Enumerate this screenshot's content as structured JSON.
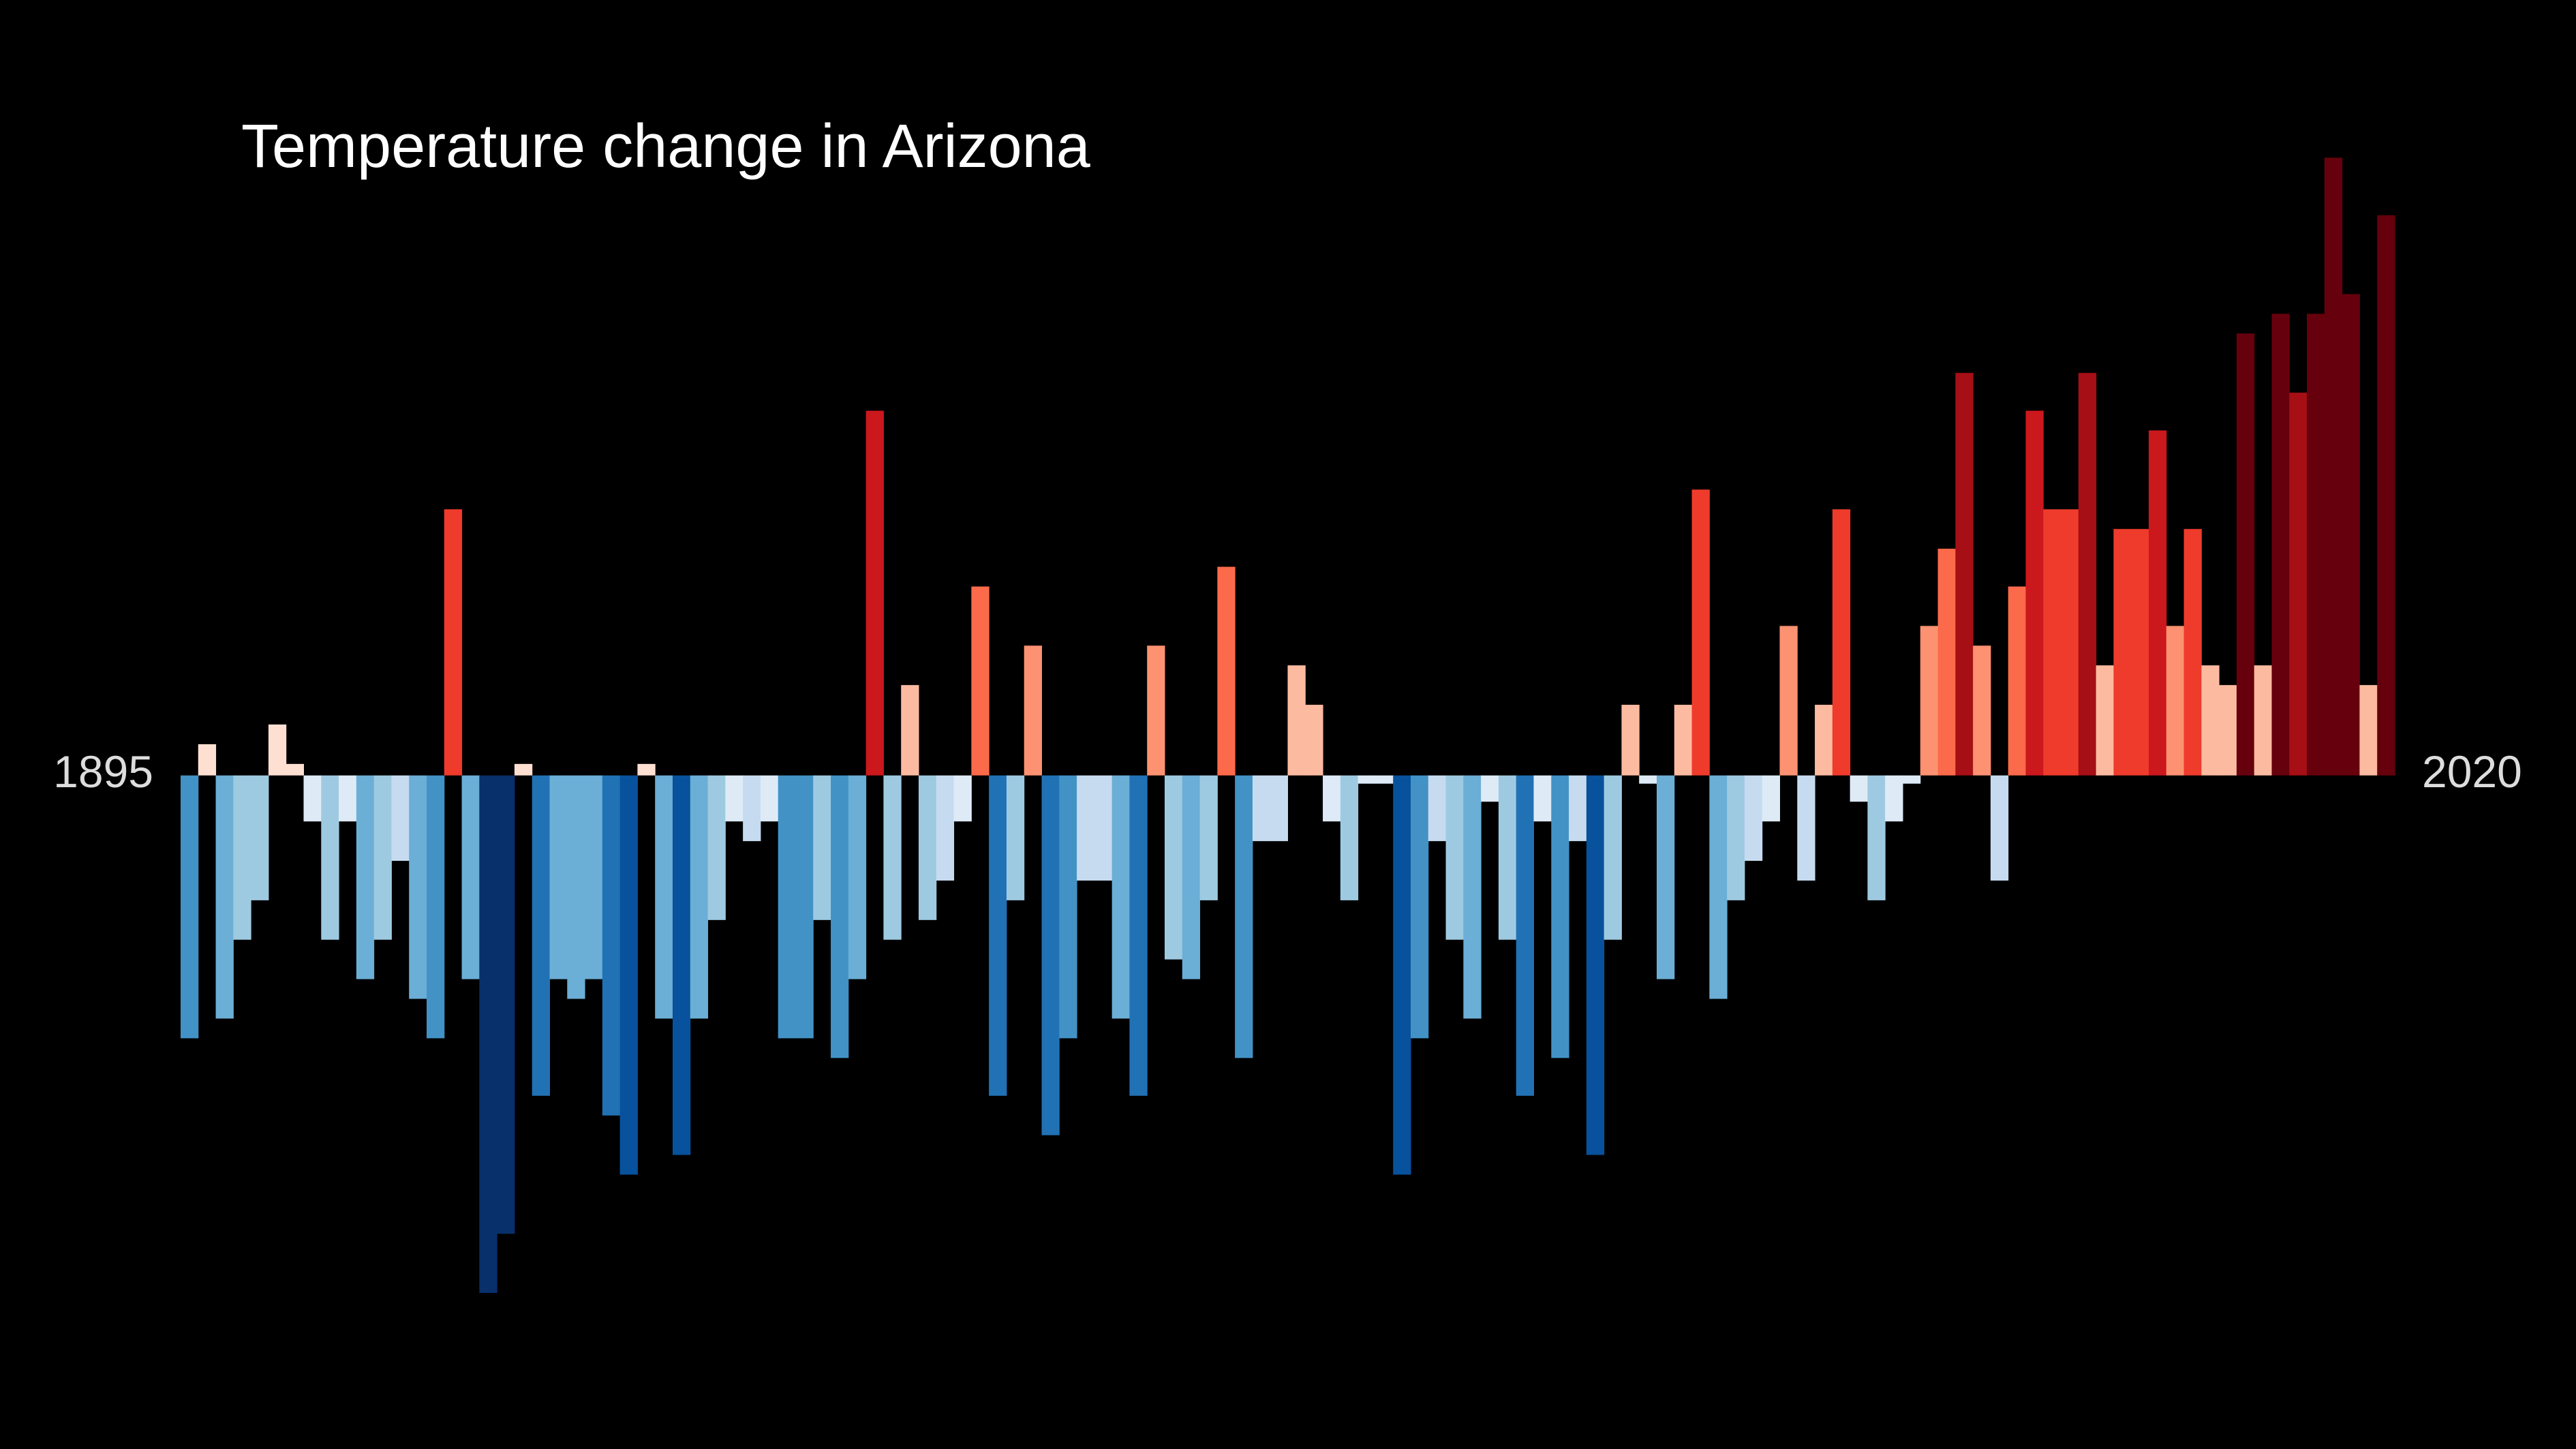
{
  "chart_data": {
    "type": "bar",
    "title": "Temperature change in Arizona",
    "categories": [
      "1895",
      null,
      null,
      null,
      null,
      null,
      null,
      null,
      null,
      null,
      null,
      null,
      null,
      null,
      null,
      null,
      null,
      null,
      null,
      null,
      null,
      null,
      null,
      null,
      null,
      null,
      null,
      null,
      null,
      null,
      null,
      null,
      null,
      null,
      null,
      null,
      null,
      null,
      null,
      null,
      null,
      null,
      null,
      null,
      null,
      null,
      null,
      null,
      null,
      null,
      null,
      null,
      null,
      null,
      null,
      null,
      null,
      null,
      null,
      null,
      null,
      null,
      null,
      null,
      null,
      null,
      null,
      null,
      null,
      null,
      null,
      null,
      null,
      null,
      null,
      null,
      null,
      null,
      null,
      null,
      null,
      null,
      null,
      null,
      null,
      null,
      null,
      null,
      null,
      null,
      null,
      null,
      null,
      null,
      null,
      null,
      null,
      null,
      null,
      null,
      null,
      null,
      null,
      null,
      null,
      null,
      null,
      null,
      null,
      null,
      null,
      null,
      null,
      null,
      null,
      null,
      null,
      null,
      null,
      null,
      null,
      null,
      null,
      null,
      null,
      "2020"
    ],
    "values": [
      -1.6,
      0.19,
      -1.48,
      -1.0,
      -0.76,
      0.31,
      0.07,
      -0.28,
      -1.0,
      -0.28,
      -1.24,
      -1.0,
      -0.52,
      -1.36,
      -1.6,
      1.62,
      -1.24,
      -3.15,
      -2.79,
      0.07,
      -1.95,
      -1.24,
      -1.36,
      -1.24,
      -2.07,
      -2.43,
      0.07,
      -1.48,
      -2.31,
      -1.48,
      -0.88,
      -0.28,
      -0.4,
      -0.28,
      -1.6,
      -1.6,
      -0.88,
      -1.72,
      -1.24,
      2.22,
      -1.0,
      0.55,
      -0.88,
      -0.64,
      -0.28,
      1.15,
      -1.95,
      -0.76,
      0.79,
      -2.19,
      -1.6,
      -0.64,
      -0.64,
      -1.48,
      -1.95,
      0.79,
      -1.12,
      -1.24,
      -0.76,
      1.27,
      -1.72,
      -0.4,
      -0.4,
      0.67,
      0.43,
      -0.28,
      -0.76,
      -0.05,
      -0.05,
      -2.43,
      -1.6,
      -0.4,
      -1.0,
      -1.48,
      -0.16,
      -1.0,
      -1.95,
      -0.28,
      -1.72,
      -0.4,
      -2.31,
      -1.0,
      0.43,
      -0.05,
      -1.24,
      0.43,
      1.74,
      -1.36,
      -0.76,
      -0.52,
      -0.28,
      0.91,
      -0.64,
      0.43,
      1.62,
      -0.16,
      -0.76,
      -0.28,
      -0.05,
      0.91,
      1.38,
      2.45,
      0.79,
      -0.64,
      1.15,
      2.22,
      1.62,
      1.62,
      2.45,
      0.67,
      1.5,
      1.5,
      2.1,
      0.91,
      1.5,
      0.67,
      0.55,
      2.69,
      0.67,
      2.81,
      2.33,
      2.81,
      3.76,
      2.93,
      0.55,
      3.41
    ],
    "ylim": [
      -4.1,
      4.72
    ],
    "colormap": [
      "#08306b",
      "#08519c",
      "#2171b5",
      "#4292c6",
      "#6baed6",
      "#9ecae1",
      "#c6dbef",
      "#deebf7",
      "#fee0d2",
      "#fcbba1",
      "#fc9272",
      "#fb6a4a",
      "#ef3b2c",
      "#cb181d",
      "#a50f15",
      "#67000d"
    ],
    "colorlim": [
      -3,
      3
    ]
  }
}
